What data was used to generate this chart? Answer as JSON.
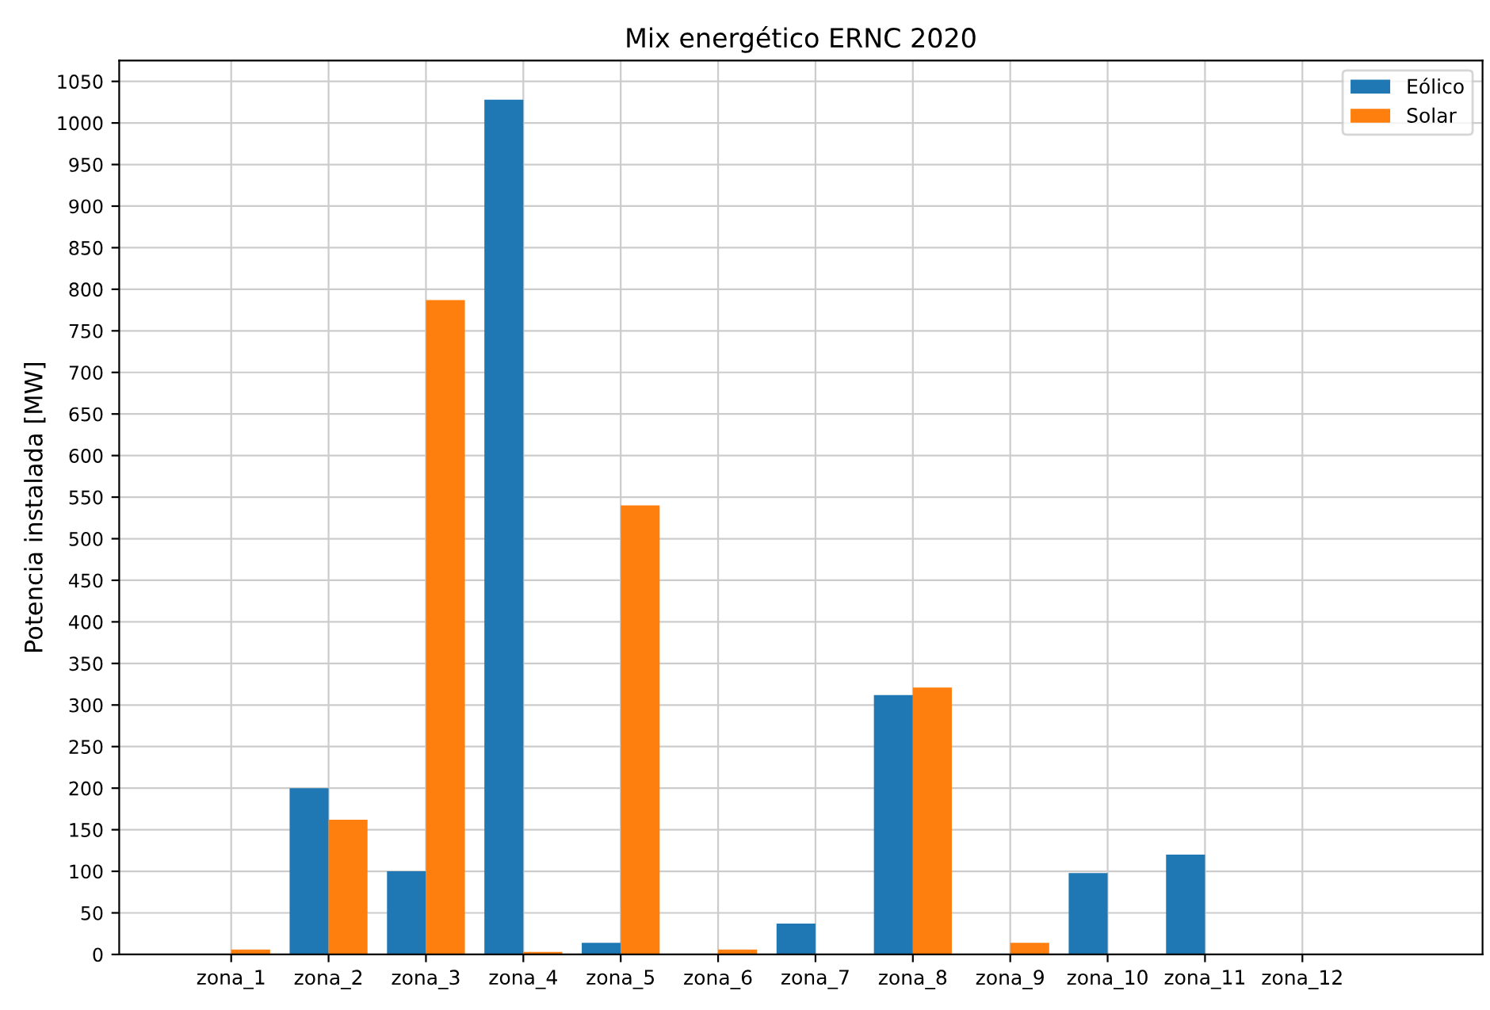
{
  "chart_data": {
    "type": "bar",
    "title": "Mix energético ERNC 2020",
    "ylabel": "Potencia instalada [MW]",
    "categories": [
      "zona_1",
      "zona_2",
      "zona_3",
      "zona_4",
      "zona_5",
      "zona_6",
      "zona_7",
      "zona_8",
      "zona_9",
      "zona_10",
      "zona_11",
      "zona_12"
    ],
    "series": [
      {
        "name": "Eólico",
        "color": "#1f77b4",
        "values": [
          0,
          200,
          100,
          1028,
          14,
          0,
          37,
          312,
          0,
          98,
          120,
          0
        ]
      },
      {
        "name": "Solar",
        "color": "#ff7f0e",
        "values": [
          6,
          162,
          787,
          3,
          540,
          6,
          0,
          321,
          14,
          0,
          0,
          0
        ]
      }
    ],
    "ylim": [
      0,
      1075
    ],
    "yticks": [
      0,
      50,
      100,
      150,
      200,
      250,
      300,
      350,
      400,
      450,
      500,
      550,
      600,
      650,
      700,
      750,
      800,
      850,
      900,
      950,
      1000,
      1050
    ],
    "grid": true,
    "legend": "top right"
  }
}
